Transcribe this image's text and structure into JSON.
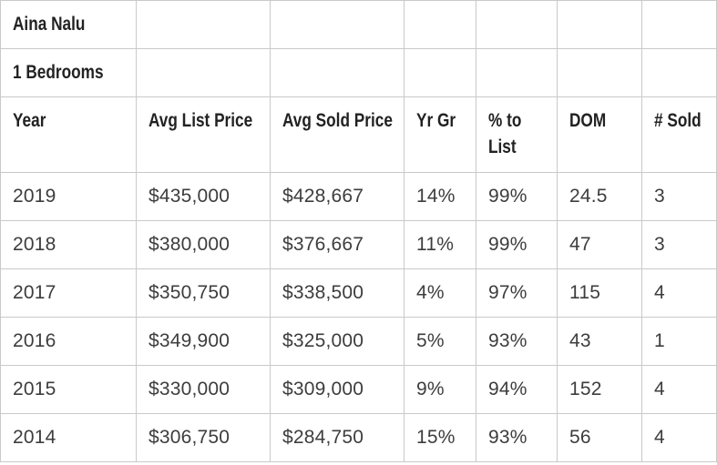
{
  "title": "Aina Nalu",
  "subtitle": "1 Bedrooms",
  "colors": {
    "background": "#ffffff",
    "border": "#c9c9c9",
    "header_text": "#222222",
    "body_text": "#3d3d3d"
  },
  "table": {
    "columns": [
      {
        "key": "year",
        "label": "Year"
      },
      {
        "key": "avg_list_price",
        "label": "Avg List Price"
      },
      {
        "key": "avg_sold_price",
        "label": "Avg Sold Price"
      },
      {
        "key": "yr_gr",
        "label": "Yr Gr"
      },
      {
        "key": "pct_to_list",
        "label": "% to List"
      },
      {
        "key": "dom",
        "label": "DOM"
      },
      {
        "key": "num_sold",
        "label": "# Sold"
      }
    ],
    "rows": [
      {
        "cells": [
          "2019",
          "$435,000",
          "$428,667",
          "14%",
          "99%",
          "24.5",
          "3"
        ]
      },
      {
        "cells": [
          "2018",
          "$380,000",
          "$376,667",
          "11%",
          "99%",
          "47",
          "3"
        ]
      },
      {
        "cells": [
          "2017",
          "$350,750",
          "$338,500",
          "4%",
          "97%",
          "115",
          "4"
        ]
      },
      {
        "cells": [
          "2016",
          "$349,900",
          "$325,000",
          "5%",
          "93%",
          "43",
          "1"
        ]
      },
      {
        "cells": [
          "2015",
          "$330,000",
          "$309,000",
          "9%",
          "94%",
          "152",
          "4"
        ]
      },
      {
        "cells": [
          "2014",
          "$306,750",
          "$284,750",
          "15%",
          "93%",
          "56",
          "4"
        ]
      }
    ]
  },
  "chart_data": {
    "type": "table",
    "title": "Aina Nalu",
    "subtitle": "1 Bedrooms",
    "columns": [
      "Year",
      "Avg List Price",
      "Avg Sold Price",
      "Yr Gr",
      "% to List",
      "DOM",
      "# Sold"
    ],
    "rows": [
      [
        "2019",
        "$435,000",
        "$428,667",
        "14%",
        "99%",
        "24.5",
        "3"
      ],
      [
        "2018",
        "$380,000",
        "$376,667",
        "11%",
        "99%",
        "47",
        "3"
      ],
      [
        "2017",
        "$350,750",
        "$338,500",
        "4%",
        "97%",
        "115",
        "4"
      ],
      [
        "2016",
        "$349,900",
        "$325,000",
        "5%",
        "93%",
        "43",
        "1"
      ],
      [
        "2015",
        "$330,000",
        "$309,000",
        "9%",
        "94%",
        "152",
        "4"
      ],
      [
        "2014",
        "$306,750",
        "$284,750",
        "15%",
        "93%",
        "56",
        "4"
      ]
    ]
  }
}
